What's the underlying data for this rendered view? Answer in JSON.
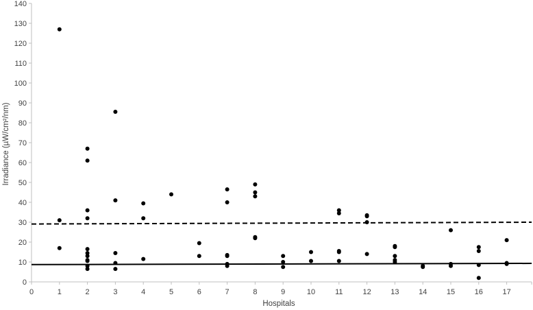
{
  "chart_data": {
    "type": "scatter",
    "xlabel": "Hospitals",
    "ylabel": "Irradiance (µW/cm²/nm)",
    "xlim": [
      0,
      18
    ],
    "ylim": [
      0,
      140
    ],
    "xticks": [
      "0",
      "1",
      "2",
      "3",
      "4",
      "5",
      "6",
      "7",
      "8",
      "9",
      "10",
      "11",
      "12",
      "13",
      "14",
      "15",
      "16",
      "17"
    ],
    "yticks": [
      "0",
      "10",
      "20",
      "30",
      "40",
      "50",
      "60",
      "70",
      "80",
      "90",
      "100",
      "110",
      "120",
      "130",
      "140"
    ],
    "grid": false,
    "legend": "none",
    "marker_color": "#000000",
    "series": [
      {
        "points": [
          [
            1,
            127
          ],
          [
            1,
            31
          ],
          [
            1,
            17
          ],
          [
            2,
            67
          ],
          [
            2,
            61
          ],
          [
            2,
            36
          ],
          [
            2,
            32
          ],
          [
            2,
            16.5
          ],
          [
            2,
            14.5
          ],
          [
            2,
            13
          ],
          [
            2,
            11
          ],
          [
            2,
            10.5
          ],
          [
            2,
            8
          ],
          [
            2,
            6.5
          ],
          [
            3,
            85.5
          ],
          [
            3,
            41
          ],
          [
            3,
            14.5
          ],
          [
            3,
            9.5
          ],
          [
            3,
            6.5
          ],
          [
            4,
            39.5
          ],
          [
            4,
            32
          ],
          [
            4,
            11.5
          ],
          [
            5,
            44
          ],
          [
            6,
            19.5
          ],
          [
            6,
            13
          ],
          [
            7,
            46.5
          ],
          [
            7,
            40
          ],
          [
            7,
            13.5
          ],
          [
            7,
            13
          ],
          [
            7,
            9
          ],
          [
            7,
            8
          ],
          [
            8,
            49
          ],
          [
            8,
            45
          ],
          [
            8,
            43
          ],
          [
            8,
            22.5
          ],
          [
            8,
            22
          ],
          [
            9,
            13
          ],
          [
            9,
            10
          ],
          [
            9,
            7.5
          ],
          [
            10,
            15
          ],
          [
            10,
            10.5
          ],
          [
            11,
            36
          ],
          [
            11,
            34.5
          ],
          [
            11,
            15.5
          ],
          [
            11,
            15
          ],
          [
            11,
            10.5
          ],
          [
            12,
            33.5
          ],
          [
            12,
            33
          ],
          [
            12,
            30
          ],
          [
            12,
            14
          ],
          [
            13,
            18
          ],
          [
            13,
            17.5
          ],
          [
            13,
            13
          ],
          [
            13,
            11
          ],
          [
            13,
            10
          ],
          [
            14,
            8
          ],
          [
            14,
            7.5
          ],
          [
            15,
            26
          ],
          [
            15,
            9
          ],
          [
            15,
            8
          ],
          [
            16,
            17.5
          ],
          [
            16,
            15.5
          ],
          [
            16,
            8.5
          ],
          [
            16,
            2
          ],
          [
            17,
            21
          ],
          [
            17,
            9.5
          ],
          [
            17,
            9
          ]
        ]
      }
    ],
    "reference_lines": [
      {
        "style": "dashed",
        "from": [
          0,
          29.1
        ],
        "to": [
          18,
          30
        ]
      },
      {
        "style": "solid",
        "from": [
          0,
          8.7
        ],
        "to": [
          18,
          9.3
        ]
      }
    ]
  }
}
